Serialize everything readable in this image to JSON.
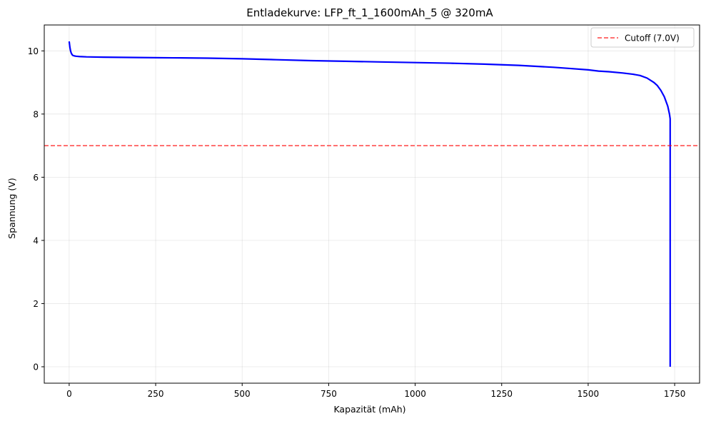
{
  "chart_data": {
    "type": "line",
    "title": "Entladekurve: LFP_ft_1_1600mAh_5 @ 320mA",
    "xlabel": "Kapazität (mAh)",
    "ylabel": "Spannung (V)",
    "xlim": [
      -72,
      1822
    ],
    "ylim": [
      -0.52,
      10.82
    ],
    "xticks": [
      0,
      250,
      500,
      750,
      1000,
      1250,
      1500,
      1750
    ],
    "yticks": [
      0,
      2,
      4,
      6,
      8,
      10
    ],
    "grid": true,
    "legend_position": "top-right",
    "series": [
      {
        "name": "",
        "color": "#0000ff",
        "x": [
          0,
          2,
          4,
          6,
          8,
          10,
          15,
          20,
          30,
          50,
          100,
          200,
          300,
          400,
          500,
          600,
          700,
          800,
          900,
          1000,
          1100,
          1200,
          1300,
          1400,
          1450,
          1500,
          1530,
          1560,
          1600,
          1630,
          1650,
          1670,
          1690,
          1700,
          1710,
          1720,
          1730,
          1735,
          1737,
          1737
        ],
        "y": [
          10.3,
          10.12,
          10.0,
          9.93,
          9.89,
          9.86,
          9.84,
          9.83,
          9.82,
          9.81,
          9.8,
          9.79,
          9.78,
          9.77,
          9.75,
          9.72,
          9.69,
          9.67,
          9.65,
          9.63,
          9.61,
          9.58,
          9.54,
          9.48,
          9.44,
          9.4,
          9.36,
          9.34,
          9.3,
          9.26,
          9.22,
          9.14,
          9.0,
          8.9,
          8.75,
          8.55,
          8.25,
          8.0,
          7.85,
          0.0
        ]
      },
      {
        "name": "Cutoff (7.0V)",
        "color": "#ff0000",
        "style": "dashed",
        "hline": 7.0
      }
    ]
  }
}
